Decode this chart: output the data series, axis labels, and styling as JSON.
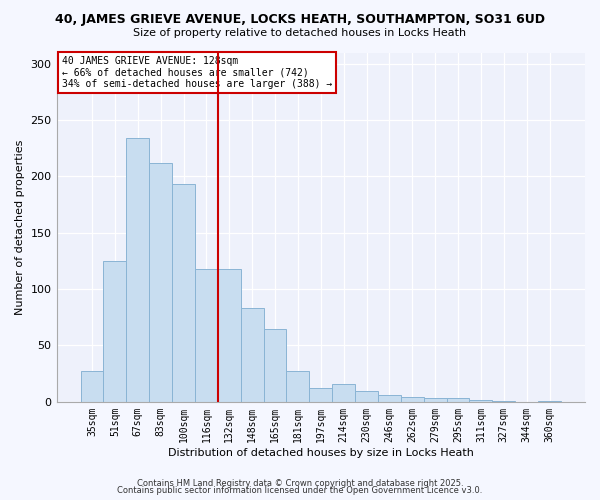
{
  "title": "40, JAMES GRIEVE AVENUE, LOCKS HEATH, SOUTHAMPTON, SO31 6UD",
  "subtitle": "Size of property relative to detached houses in Locks Heath",
  "xlabel": "Distribution of detached houses by size in Locks Heath",
  "ylabel": "Number of detached properties",
  "bar_labels": [
    "35sqm",
    "51sqm",
    "67sqm",
    "83sqm",
    "100sqm",
    "116sqm",
    "132sqm",
    "148sqm",
    "165sqm",
    "181sqm",
    "197sqm",
    "214sqm",
    "230sqm",
    "246sqm",
    "262sqm",
    "279sqm",
    "295sqm",
    "311sqm",
    "327sqm",
    "344sqm",
    "360sqm"
  ],
  "bar_values": [
    27,
    125,
    234,
    212,
    193,
    118,
    118,
    83,
    65,
    27,
    12,
    16,
    10,
    6,
    4,
    3,
    3,
    2,
    1,
    0,
    1
  ],
  "bar_color": "#c8ddf0",
  "bar_edgecolor": "#8ab4d4",
  "vline_x": 5.5,
  "vline_color": "#cc0000",
  "annotation_lines": [
    "40 JAMES GRIEVE AVENUE: 128sqm",
    "← 66% of detached houses are smaller (742)",
    "34% of semi-detached houses are larger (388) →"
  ],
  "annotation_box_edgecolor": "#cc0000",
  "ylim": [
    0,
    310
  ],
  "yticks": [
    0,
    50,
    100,
    150,
    200,
    250,
    300
  ],
  "footer1": "Contains HM Land Registry data © Crown copyright and database right 2025.",
  "footer2": "Contains public sector information licensed under the Open Government Licence v3.0.",
  "bg_color": "#f5f7ff",
  "plot_bg_color": "#eef1fb"
}
